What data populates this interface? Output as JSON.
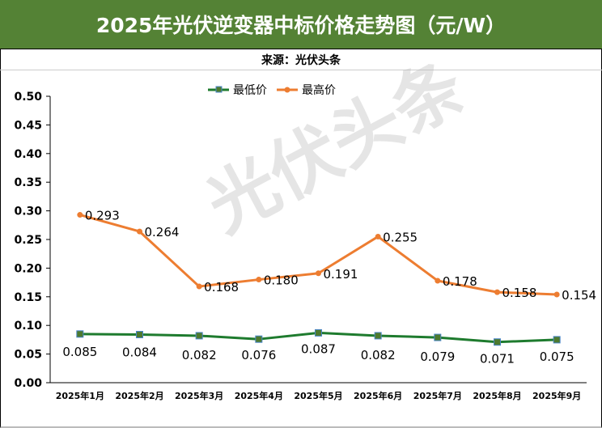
{
  "header": {
    "title": "2025年光伏逆变器中标价格走势图（元/W）",
    "source": "来源：光伏头条"
  },
  "watermark": "光伏头条",
  "chart_data": {
    "type": "line",
    "title": "2025年光伏逆变器中标价格走势图（元/W）",
    "categories": [
      "2025年1月",
      "2025年2月",
      "2025年3月",
      "2025年4月",
      "2025年5月",
      "2025年6月",
      "2025年7月",
      "2025年8月",
      "2025年9月"
    ],
    "series": [
      {
        "name": "最低价",
        "color": "#1e7b2e",
        "marker": "square",
        "values": [
          0.085,
          0.084,
          0.082,
          0.076,
          0.087,
          0.082,
          0.079,
          0.071,
          0.075
        ],
        "labels": [
          "0.085",
          "0.084",
          "0.082",
          "0.076",
          "0.087",
          "0.082",
          "0.079",
          "0.071",
          "0.075"
        ]
      },
      {
        "name": "最高价",
        "color": "#ed7d31",
        "marker": "circle",
        "values": [
          0.293,
          0.264,
          0.168,
          0.18,
          0.191,
          0.255,
          0.178,
          0.158,
          0.154
        ],
        "labels": [
          "0.293",
          "0.264",
          "0.168",
          "0.180",
          "0.191",
          "0.255",
          "0.178",
          "0.158",
          "0.154"
        ]
      }
    ],
    "yticks": [
      "0.00",
      "0.05",
      "0.10",
      "0.15",
      "0.20",
      "0.25",
      "0.30",
      "0.35",
      "0.40",
      "0.45",
      "0.50"
    ],
    "ylim": [
      0,
      0.5
    ],
    "legend": "top-center",
    "grid": false
  }
}
